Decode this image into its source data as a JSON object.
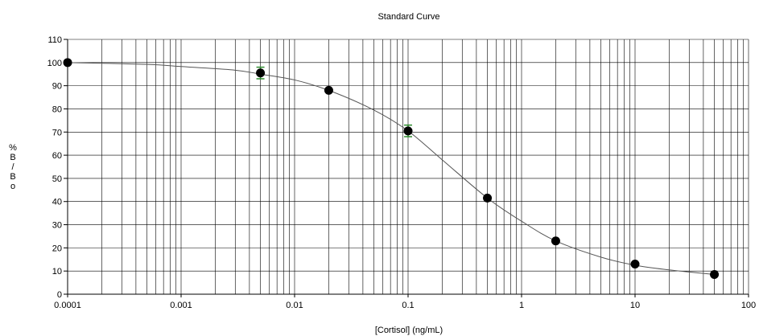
{
  "chart_data": {
    "type": "scatter",
    "title": "Standard Curve",
    "xlabel": "[Cortisol] (ng/mL)",
    "ylabel_chars": [
      "%",
      "B",
      "/",
      "B",
      "o"
    ],
    "x_scale": "log",
    "xlim": [
      0.0001,
      100
    ],
    "ylim": [
      0,
      110
    ],
    "grid": true,
    "x_ticks": [
      0.0001,
      0.001,
      0.01,
      0.1,
      1,
      10,
      100
    ],
    "x_tick_labels": [
      "0.0001",
      "0.001",
      "0.01",
      "0.1",
      "1",
      "10",
      "100"
    ],
    "y_ticks": [
      0,
      10,
      20,
      30,
      40,
      50,
      60,
      70,
      80,
      90,
      100,
      110
    ],
    "y_tick_labels": [
      "0",
      "10",
      "20",
      "30",
      "40",
      "50",
      "60",
      "70",
      "80",
      "90",
      "100",
      "110"
    ],
    "points": [
      {
        "x": 0.0001,
        "y": 100
      },
      {
        "x": 0.005,
        "y": 95.5,
        "err": 2.5
      },
      {
        "x": 0.02,
        "y": 88
      },
      {
        "x": 0.1,
        "y": 70.5,
        "err": 2.5
      },
      {
        "x": 0.5,
        "y": 41.5
      },
      {
        "x": 2,
        "y": 23
      },
      {
        "x": 10,
        "y": 13
      },
      {
        "x": 50,
        "y": 8.5
      }
    ],
    "fit_curve": [
      [
        0.0001,
        100
      ],
      [
        0.0005,
        99.2
      ],
      [
        0.001,
        98.3
      ],
      [
        0.003,
        96.7
      ],
      [
        0.005,
        95
      ],
      [
        0.01,
        92.5
      ],
      [
        0.02,
        88
      ],
      [
        0.05,
        79.5
      ],
      [
        0.1,
        70.5
      ],
      [
        0.2,
        58
      ],
      [
        0.5,
        41.5
      ],
      [
        1,
        31.5
      ],
      [
        2,
        23
      ],
      [
        5,
        16
      ],
      [
        10,
        12.5
      ],
      [
        20,
        10.5
      ],
      [
        50,
        8.5
      ]
    ],
    "colors": {
      "point": "#000000",
      "error_bar": "#2e8b2e",
      "curve": "#555555",
      "grid": "#000000"
    }
  }
}
